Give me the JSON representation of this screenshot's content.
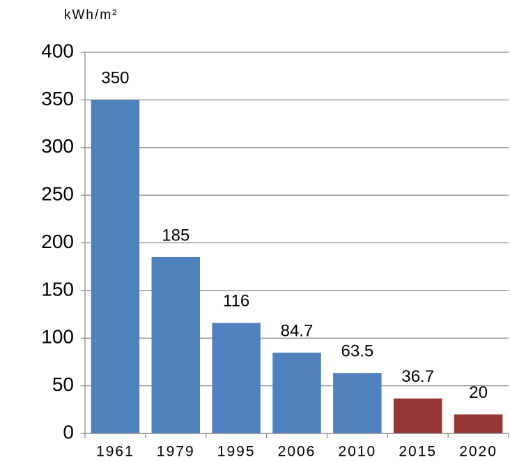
{
  "chart_data": {
    "type": "bar",
    "y_axis_label": "kWh/m²",
    "categories": [
      "1961",
      "1979",
      "1995",
      "2006",
      "2010",
      "2015",
      "2020"
    ],
    "values": [
      350,
      185,
      116,
      84.7,
      63.5,
      36.7,
      20
    ],
    "colors": [
      "#4f81bd",
      "#4f81bd",
      "#4f81bd",
      "#4f81bd",
      "#4f81bd",
      "#953735",
      "#953735"
    ],
    "ylim": [
      0,
      400
    ],
    "yticks": [
      0,
      50,
      100,
      150,
      200,
      250,
      300,
      350,
      400
    ],
    "grid": true
  }
}
